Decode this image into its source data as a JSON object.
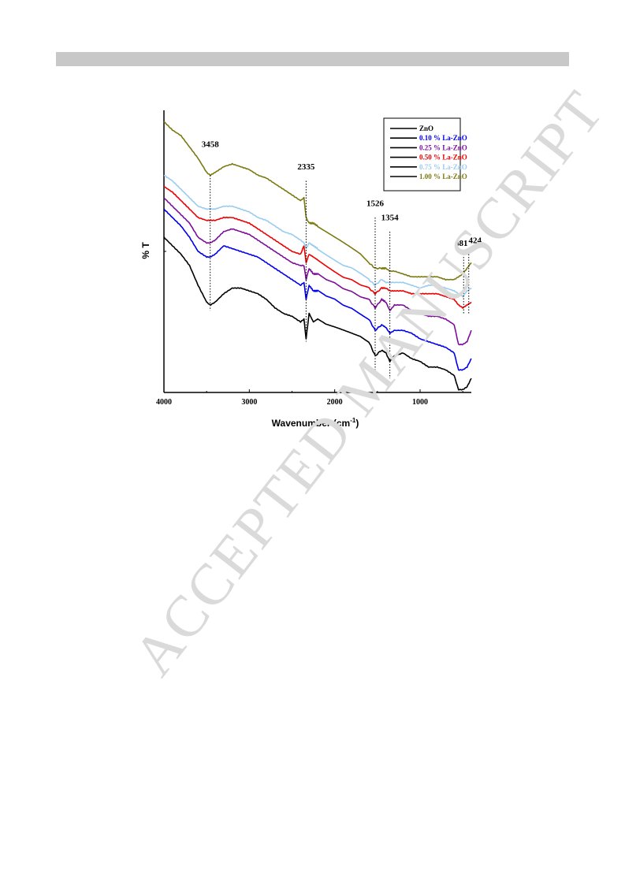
{
  "header": {
    "bar_color": "#c8c8c8"
  },
  "watermark": {
    "text": "ACCEPTED MANUSCRIPT"
  },
  "chart_data": {
    "type": "line",
    "xlabel": "Wavenumber (cm",
    "xlabel_sup": "-1",
    "xlabel_close": ")",
    "ylabel": "% T",
    "xlim": [
      4000,
      400
    ],
    "x_reversed": true,
    "ylim": [
      0,
      100
    ],
    "xticks": [
      4000,
      3000,
      2000,
      1000
    ],
    "xtick_labels": [
      "4000",
      "3000",
      "2000",
      "1000"
    ],
    "grid": false,
    "legend_position": "top-right",
    "peaks": [
      {
        "label": "3458",
        "x": 3458,
        "label_y": 87,
        "y1": 77,
        "y2": 29
      },
      {
        "label": "2335",
        "x": 2335,
        "label_y": 79,
        "y1": 75,
        "y2": 18
      },
      {
        "label": "1526",
        "x": 1526,
        "label_y": 66,
        "y1": 62,
        "y2": 8
      },
      {
        "label": "1354",
        "x": 1354,
        "label_y": 61,
        "y1": 57,
        "y2": 5
      },
      {
        "label": "481",
        "x": 490,
        "label_y": 52,
        "y1": 50,
        "y2": 28
      },
      {
        "label": "424",
        "x": 430,
        "label_y": 53,
        "y1": 50,
        "y2": 28
      }
    ],
    "series": [
      {
        "name": "ZnO",
        "color": "#000000",
        "x": [
          4000,
          3900,
          3800,
          3700,
          3600,
          3500,
          3458,
          3400,
          3300,
          3200,
          3100,
          3000,
          2900,
          2800,
          2700,
          2600,
          2500,
          2400,
          2360,
          2335,
          2300,
          2250,
          2200,
          2100,
          2000,
          1900,
          1800,
          1700,
          1600,
          1526,
          1450,
          1400,
          1354,
          1300,
          1200,
          1100,
          1000,
          900,
          800,
          700,
          600,
          550,
          500,
          450,
          400
        ],
        "y": [
          55,
          52,
          49,
          45,
          38,
          32,
          31,
          32,
          35,
          37,
          37,
          36,
          35,
          33,
          30,
          28,
          27,
          25,
          26,
          19,
          28,
          25,
          26,
          24,
          23,
          22,
          21,
          20,
          18,
          13,
          15,
          14,
          11,
          13,
          14,
          12,
          11,
          9,
          9,
          8,
          6,
          1,
          1,
          2,
          5
        ]
      },
      {
        "name": "0.10 % La-ZnO",
        "color": "#0000ee",
        "x": [
          4000,
          3900,
          3800,
          3700,
          3600,
          3500,
          3458,
          3400,
          3300,
          3200,
          3100,
          3000,
          2900,
          2800,
          2700,
          2600,
          2500,
          2400,
          2360,
          2335,
          2300,
          2250,
          2200,
          2100,
          2000,
          1900,
          1800,
          1700,
          1600,
          1526,
          1450,
          1400,
          1354,
          1300,
          1200,
          1100,
          1000,
          900,
          800,
          700,
          600,
          550,
          500,
          450,
          400
        ],
        "y": [
          65,
          62,
          59,
          55,
          50,
          48,
          48,
          49,
          52,
          51,
          50,
          49,
          48,
          46,
          44,
          42,
          40,
          38,
          39,
          33,
          38,
          36,
          36,
          34,
          33,
          31,
          30,
          28,
          26,
          22,
          24,
          23,
          21,
          22,
          22,
          21,
          19,
          18,
          17,
          16,
          14,
          8,
          8,
          9,
          12
        ]
      },
      {
        "name": "0.25 % La-ZnO",
        "color": "#7b0f99",
        "x": [
          4000,
          3900,
          3800,
          3700,
          3600,
          3500,
          3458,
          3400,
          3300,
          3200,
          3100,
          3000,
          2900,
          2800,
          2700,
          2600,
          2500,
          2400,
          2360,
          2335,
          2300,
          2250,
          2200,
          2100,
          2000,
          1900,
          1800,
          1700,
          1600,
          1526,
          1450,
          1400,
          1354,
          1300,
          1200,
          1100,
          1000,
          900,
          800,
          700,
          600,
          550,
          500,
          450,
          400
        ],
        "y": [
          69,
          66,
          63,
          60,
          55,
          53,
          53,
          54,
          57,
          58,
          57,
          56,
          54,
          52,
          50,
          48,
          46,
          45,
          45,
          40,
          44,
          42,
          42,
          40,
          39,
          37,
          36,
          34,
          33,
          30,
          33,
          32,
          29,
          31,
          31,
          29,
          28,
          27,
          27,
          26,
          24,
          17,
          17,
          18,
          22
        ]
      },
      {
        "name": "0.50 % La-ZnO",
        "color": "#ee0000",
        "x": [
          4000,
          3900,
          3800,
          3700,
          3600,
          3500,
          3458,
          3400,
          3300,
          3200,
          3100,
          3000,
          2900,
          2800,
          2700,
          2600,
          2500,
          2400,
          2360,
          2335,
          2300,
          2250,
          2200,
          2100,
          2000,
          1900,
          1800,
          1700,
          1600,
          1526,
          1450,
          1400,
          1354,
          1300,
          1200,
          1100,
          1000,
          900,
          800,
          700,
          600,
          550,
          500,
          450,
          400
        ],
        "y": [
          73,
          71,
          68,
          65,
          62,
          61,
          61,
          61,
          62,
          62,
          61,
          60,
          58,
          56,
          54,
          52,
          50,
          49,
          52,
          46,
          49,
          48,
          47,
          45,
          43,
          41,
          40,
          38,
          37,
          35,
          37,
          37,
          36,
          36,
          36,
          35,
          35,
          35,
          35,
          34,
          33,
          31,
          30,
          31,
          32
        ]
      },
      {
        "name": "0.75 % La-ZnO",
        "color": "#99ccee",
        "x": [
          4000,
          3900,
          3800,
          3700,
          3600,
          3500,
          3458,
          3400,
          3300,
          3200,
          3100,
          3000,
          2900,
          2800,
          2700,
          2600,
          2500,
          2400,
          2360,
          2335,
          2300,
          2250,
          2200,
          2100,
          2000,
          1900,
          1800,
          1700,
          1600,
          1526,
          1450,
          1400,
          1354,
          1300,
          1200,
          1100,
          1000,
          900,
          800,
          700,
          600,
          550,
          500,
          450,
          400
        ],
        "y": [
          77,
          75,
          72,
          69,
          66,
          65,
          65,
          65,
          66,
          66,
          65,
          64,
          62,
          61,
          59,
          57,
          56,
          54,
          53,
          51,
          53,
          52,
          51,
          49,
          47,
          45,
          44,
          42,
          40,
          38,
          40,
          39,
          39,
          39,
          39,
          38,
          37,
          38,
          38,
          37,
          36,
          35,
          34,
          36,
          37
        ]
      },
      {
        "name": "1.00 % La-ZnO",
        "color": "#7a7a10",
        "x": [
          4000,
          3900,
          3800,
          3700,
          3600,
          3500,
          3458,
          3400,
          3300,
          3200,
          3100,
          3000,
          2900,
          2800,
          2700,
          2600,
          2500,
          2400,
          2360,
          2335,
          2300,
          2250,
          2200,
          2100,
          2000,
          1900,
          1800,
          1700,
          1600,
          1526,
          1450,
          1400,
          1354,
          1300,
          1200,
          1100,
          1000,
          900,
          800,
          700,
          600,
          550,
          500,
          450,
          400
        ],
        "y": [
          96,
          93,
          91,
          87,
          83,
          78,
          77,
          78,
          80,
          81,
          80,
          79,
          77,
          76,
          74,
          72,
          70,
          68,
          69,
          62,
          60,
          60,
          59,
          57,
          55,
          53,
          51,
          49,
          46,
          44,
          44,
          44,
          43,
          43,
          42,
          41,
          41,
          41,
          41,
          40,
          40,
          41,
          42,
          44,
          46
        ]
      }
    ]
  }
}
